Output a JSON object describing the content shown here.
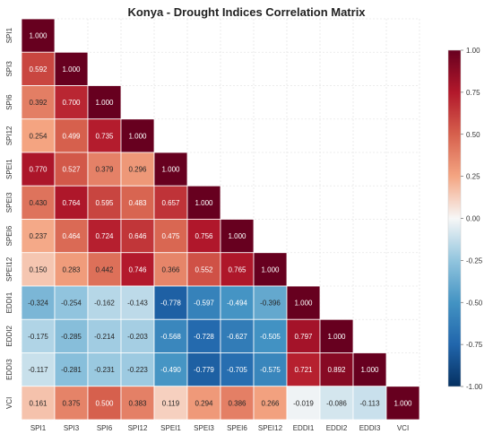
{
  "chart_data": {
    "type": "heatmap",
    "title": "Konya - Drought Indices Correlation Matrix",
    "xlabel": "",
    "ylabel": "",
    "labels": [
      "SPI1",
      "SPI3",
      "SPI6",
      "SPI12",
      "SPEI1",
      "SPEI3",
      "SPEI6",
      "SPEI12",
      "EDDI1",
      "EDDI2",
      "EDDI3",
      "VCI"
    ],
    "matrix": [
      [
        1.0
      ],
      [
        0.592,
        1.0
      ],
      [
        0.392,
        0.7,
        1.0
      ],
      [
        0.254,
        0.499,
        0.735,
        1.0
      ],
      [
        0.77,
        0.527,
        0.379,
        0.296,
        1.0
      ],
      [
        0.43,
        0.764,
        0.595,
        0.483,
        0.657,
        1.0
      ],
      [
        0.237,
        0.464,
        0.724,
        0.646,
        0.475,
        0.756,
        1.0
      ],
      [
        0.15,
        0.283,
        0.442,
        0.746,
        0.366,
        0.552,
        0.765,
        1.0
      ],
      [
        -0.324,
        -0.254,
        -0.162,
        -0.143,
        -0.778,
        -0.597,
        -0.494,
        -0.396,
        1.0
      ],
      [
        -0.175,
        -0.285,
        -0.214,
        -0.203,
        -0.568,
        -0.728,
        -0.627,
        -0.505,
        0.797,
        1.0
      ],
      [
        -0.117,
        -0.281,
        -0.231,
        -0.223,
        -0.49,
        -0.779,
        -0.705,
        -0.575,
        0.721,
        0.892,
        1.0
      ],
      [
        0.161,
        0.375,
        0.5,
        0.383,
        0.119,
        0.294,
        0.386,
        0.266,
        -0.019,
        -0.086,
        -0.113,
        1.0
      ]
    ],
    "colorbar": {
      "range": [
        -1.0,
        1.0
      ],
      "ticks": [
        "-1.00",
        "-0.75",
        "-0.50",
        "-0.25",
        "0.00",
        "0.25",
        "0.50",
        "0.75",
        "1.00"
      ],
      "colormap": "RdBu_r"
    },
    "grid": true,
    "colors": {
      "pos_max": "#67001f",
      "neg_max": "#053061",
      "zero": "#f7f7f7"
    }
  }
}
